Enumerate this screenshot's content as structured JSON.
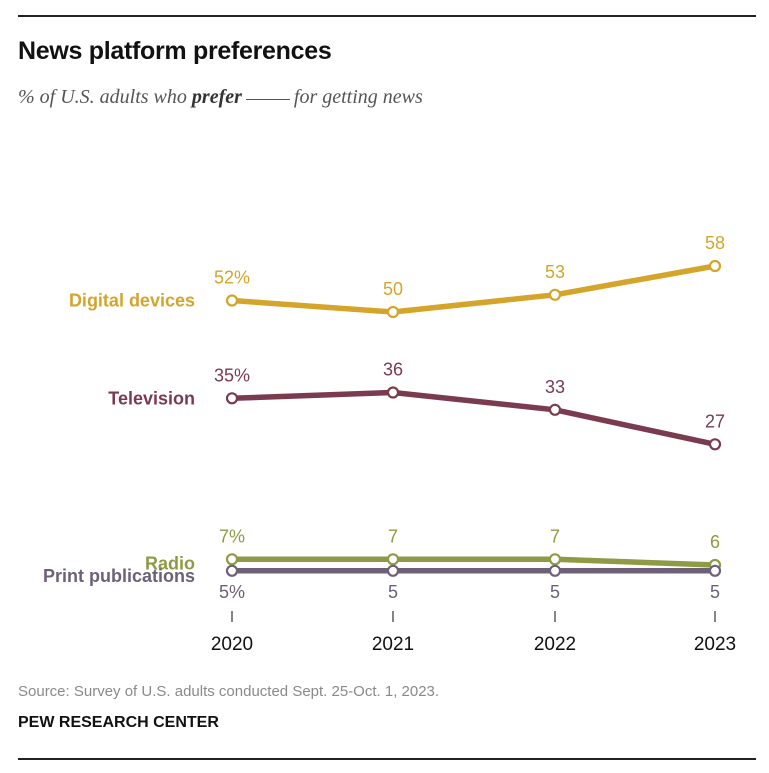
{
  "header": {
    "title": "News platform preferences",
    "subtitle_pre": "% of U.S. adults who",
    "subtitle_emph": "prefer",
    "subtitle_post": "for getting news"
  },
  "footer": {
    "source": "Source: Survey of U.S. adults conducted Sept. 25-Oct. 1, 2023.",
    "org": "PEW RESEARCH CENTER"
  },
  "chart_data": {
    "type": "line",
    "title": "News platform preferences",
    "subtitle": "% of U.S. adults who prefer ___ for getting news",
    "x": [
      "2020",
      "2021",
      "2022",
      "2023"
    ],
    "ylim": [
      0,
      70
    ],
    "grid": false,
    "legend": "direct labels left of lines",
    "series": [
      {
        "name": "Digital devices",
        "values": [
          52,
          50,
          53,
          58
        ],
        "labels": [
          "52%",
          "50",
          "53",
          "58"
        ],
        "color": "#d4a52a",
        "label_pos": "above"
      },
      {
        "name": "Television",
        "values": [
          35,
          36,
          33,
          27
        ],
        "labels": [
          "35%",
          "36",
          "33",
          "27"
        ],
        "color": "#7a3b4e",
        "label_pos": "above"
      },
      {
        "name": "Radio",
        "values": [
          7,
          7,
          7,
          6
        ],
        "labels": [
          "7%",
          "7",
          "7",
          "6"
        ],
        "color": "#8f9a45",
        "label_pos": "above"
      },
      {
        "name": "Print publications",
        "values": [
          5,
          5,
          5,
          5
        ],
        "labels": [
          "5%",
          "5",
          "5",
          "5"
        ],
        "color": "#6d6078",
        "label_pos": "below"
      }
    ]
  }
}
